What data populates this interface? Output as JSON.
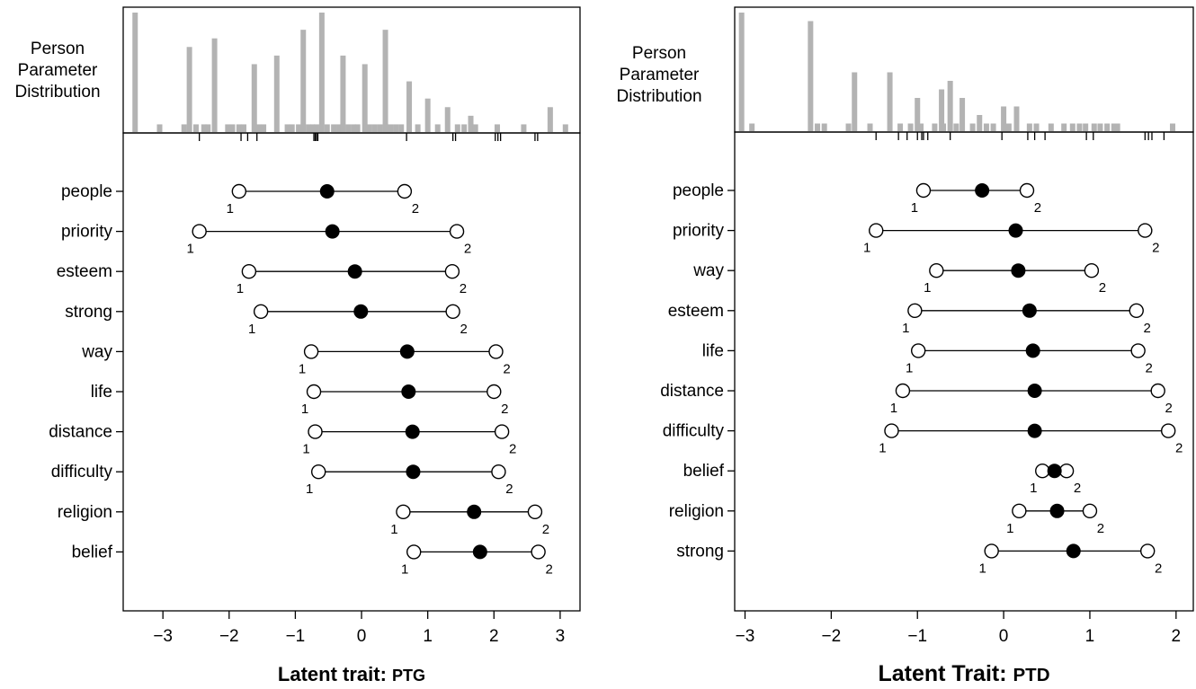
{
  "chart_data": [
    {
      "type": "scatter",
      "title": "",
      "xlabel_prefix": "Latent trait: ",
      "xlabel_suffix": "PTG",
      "xlim": [
        -3.6,
        3.3
      ],
      "xticks": [
        -3,
        -2,
        -1,
        0,
        1,
        2,
        3
      ],
      "xtick_labels": [
        "−3",
        "−2",
        "−1",
        "0",
        "1",
        "2",
        "3"
      ],
      "histogram_label": [
        "Person",
        "Parameter",
        "Distribution"
      ],
      "histogram": {
        "x": [
          -3.42,
          -3.05,
          -2.68,
          -2.6,
          -2.5,
          -2.38,
          -2.32,
          -2.22,
          -2.02,
          -1.95,
          -1.85,
          -1.78,
          -1.62,
          -1.55,
          -1.48,
          -1.28,
          -1.12,
          -1.05,
          -0.95,
          -0.88,
          -0.8,
          -0.74,
          -0.68,
          -0.6,
          -0.52,
          -0.42,
          -0.34,
          -0.28,
          -0.2,
          -0.12,
          -0.06,
          0.05,
          0.12,
          0.2,
          0.28,
          0.36,
          0.44,
          0.52,
          0.6,
          0.72,
          0.85,
          1.0,
          1.15,
          1.3,
          1.45,
          1.55,
          1.65,
          1.72,
          2.05,
          2.45,
          2.85,
          3.08
        ],
        "counts": [
          14,
          1,
          1,
          10,
          1,
          1,
          1,
          11,
          1,
          1,
          1,
          1,
          8,
          1,
          1,
          9,
          1,
          1,
          1,
          12,
          1,
          1,
          1,
          14,
          1,
          1,
          1,
          9,
          1,
          1,
          1,
          8,
          1,
          1,
          1,
          12,
          1,
          1,
          1,
          6,
          1,
          4,
          1,
          3,
          1,
          1,
          2,
          1,
          1,
          1,
          3,
          1
        ]
      },
      "rug": [
        -2.45,
        -1.82,
        -1.72,
        -1.58,
        -0.72,
        -0.7,
        -0.68,
        -0.66,
        0.68,
        1.38,
        1.42,
        2.02,
        2.06,
        2.1,
        2.62,
        2.66
      ],
      "items": [
        {
          "label": "people",
          "low": -1.85,
          "mid": -0.52,
          "high": 0.65,
          "low_label": "1",
          "high_label": "2"
        },
        {
          "label": "priority",
          "low": -2.45,
          "mid": -0.44,
          "high": 1.44,
          "low_label": "1",
          "high_label": "2"
        },
        {
          "label": "esteem",
          "low": -1.7,
          "mid": -0.1,
          "high": 1.37,
          "low_label": "1",
          "high_label": "2"
        },
        {
          "label": "strong",
          "low": -1.52,
          "mid": -0.01,
          "high": 1.38,
          "low_label": "1",
          "high_label": "2"
        },
        {
          "label": "way",
          "low": -0.76,
          "mid": 0.69,
          "high": 2.03,
          "low_label": "1",
          "high_label": "2"
        },
        {
          "label": "life",
          "low": -0.72,
          "mid": 0.71,
          "high": 2.0,
          "low_label": "1",
          "high_label": "2"
        },
        {
          "label": "distance",
          "low": -0.7,
          "mid": 0.77,
          "high": 2.12,
          "low_label": "1",
          "high_label": "2"
        },
        {
          "label": "difficulty",
          "low": -0.65,
          "mid": 0.78,
          "high": 2.07,
          "low_label": "1",
          "high_label": "2"
        },
        {
          "label": "religion",
          "low": 0.63,
          "mid": 1.7,
          "high": 2.62,
          "low_label": "1",
          "high_label": "2"
        },
        {
          "label": "belief",
          "low": 0.79,
          "mid": 1.79,
          "high": 2.67,
          "low_label": "1",
          "high_label": "2"
        }
      ]
    },
    {
      "type": "scatter",
      "title": "",
      "xlabel_prefix": "Latent Trait: ",
      "xlabel_suffix": "PTD",
      "xlim": [
        -3.12,
        2.2
      ],
      "xticks": [
        -3,
        -2,
        -1,
        0,
        1,
        2
      ],
      "xtick_labels": [
        "−3",
        "−2",
        "−1",
        "0",
        "1",
        "2"
      ],
      "histogram_label": [
        "Person",
        "Parameter",
        "Distribution"
      ],
      "histogram": {
        "x": [
          -3.04,
          -2.92,
          -2.24,
          -2.16,
          -2.08,
          -1.8,
          -1.73,
          -1.55,
          -1.32,
          -1.2,
          -1.08,
          -1.0,
          -0.96,
          -0.8,
          -0.72,
          -0.7,
          -0.62,
          -0.55,
          -0.48,
          -0.36,
          -0.28,
          -0.2,
          -0.12,
          0.0,
          0.06,
          0.15,
          0.3,
          0.38,
          0.55,
          0.7,
          0.8,
          0.88,
          0.95,
          1.05,
          1.12,
          1.2,
          1.28,
          1.32,
          1.96
        ],
        "counts": [
          14,
          1,
          13,
          1,
          1,
          1,
          7,
          1,
          7,
          1,
          1,
          4,
          1,
          1,
          5,
          1,
          6,
          1,
          4,
          1,
          2,
          1,
          1,
          3,
          1,
          3,
          1,
          1,
          1,
          1,
          1,
          1,
          1,
          1,
          1,
          1,
          1,
          1,
          1
        ]
      },
      "rug": [
        -1.48,
        -1.22,
        -1.12,
        -1.0,
        -0.95,
        -0.93,
        -0.88,
        -0.62,
        -0.02,
        0.28,
        0.36,
        0.48,
        0.96,
        1.04,
        1.64,
        1.68,
        1.72,
        1.86
      ],
      "items": [
        {
          "label": "people",
          "low": -0.93,
          "mid": -0.25,
          "high": 0.27,
          "low_label": "1",
          "high_label": "2"
        },
        {
          "label": "priority",
          "low": -1.48,
          "mid": 0.14,
          "high": 1.64,
          "low_label": "1",
          "high_label": "2"
        },
        {
          "label": "way",
          "low": -0.78,
          "mid": 0.17,
          "high": 1.02,
          "low_label": "1",
          "high_label": "2"
        },
        {
          "label": "esteem",
          "low": -1.03,
          "mid": 0.3,
          "high": 1.54,
          "low_label": "1",
          "high_label": "2"
        },
        {
          "label": "life",
          "low": -0.99,
          "mid": 0.34,
          "high": 1.56,
          "low_label": "1",
          "high_label": "2"
        },
        {
          "label": "distance",
          "low": -1.17,
          "mid": 0.36,
          "high": 1.79,
          "low_label": "1",
          "high_label": "2"
        },
        {
          "label": "difficulty",
          "low": -1.3,
          "mid": 0.36,
          "high": 1.91,
          "low_label": "1",
          "high_label": "2"
        },
        {
          "label": "belief",
          "low": 0.45,
          "mid": 0.59,
          "high": 0.73,
          "low_label": "1",
          "high_label": "2"
        },
        {
          "label": "religion",
          "low": 0.18,
          "mid": 0.62,
          "high": 1.0,
          "low_label": "1",
          "high_label": "2"
        },
        {
          "label": "strong",
          "low": -0.14,
          "mid": 0.81,
          "high": 1.67,
          "low_label": "1",
          "high_label": "2"
        }
      ]
    }
  ],
  "colors": {
    "histogram_bar": "#b3b3b3",
    "axis": "#000000",
    "open_marker_fill": "#ffffff",
    "filled_marker": "#000000"
  }
}
